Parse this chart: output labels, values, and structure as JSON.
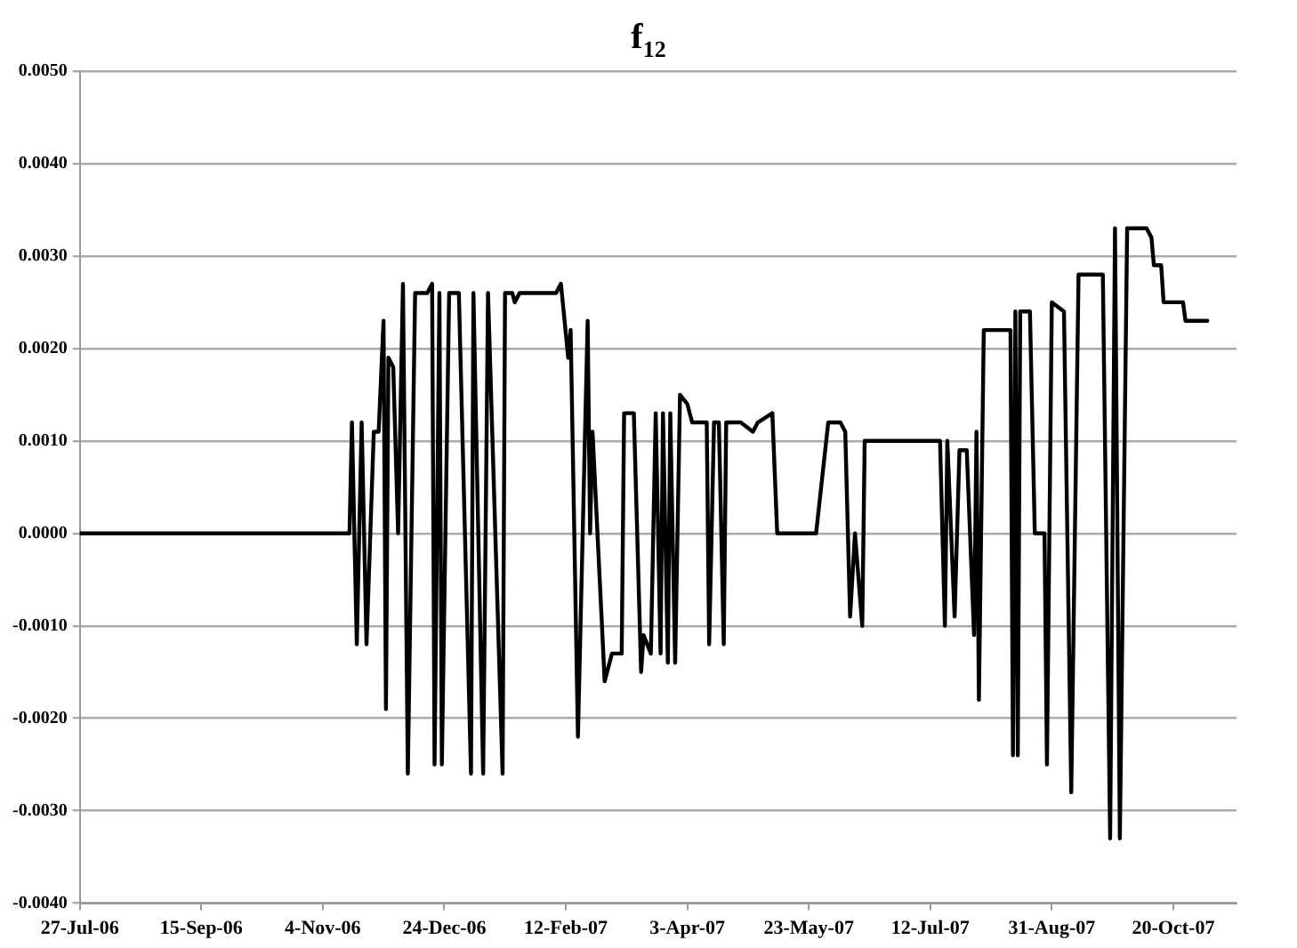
{
  "chart_data": {
    "type": "line",
    "title": "f$_{12}$",
    "x": [
      "2006-07-27",
      "2006-11-15",
      "2006-11-16",
      "2006-11-18",
      "2006-11-20",
      "2006-11-22",
      "2006-11-25",
      "2006-11-27",
      "2006-11-29",
      "2006-11-30",
      "2006-12-01",
      "2006-12-03",
      "2006-12-05",
      "2006-12-07",
      "2006-12-09",
      "2006-12-12",
      "2006-12-17",
      "2006-12-19",
      "2006-12-20",
      "2006-12-22",
      "2006-12-23",
      "2006-12-26",
      "2006-12-30",
      "2007-01-04",
      "2007-01-05",
      "2007-01-09",
      "2007-01-11",
      "2007-01-17",
      "2007-01-18",
      "2007-01-21",
      "2007-01-22",
      "2007-01-24",
      "2007-02-08",
      "2007-02-10",
      "2007-02-13",
      "2007-02-14",
      "2007-02-17",
      "2007-02-21",
      "2007-02-22",
      "2007-02-23",
      "2007-02-28",
      "2007-03-03",
      "2007-03-07",
      "2007-03-08",
      "2007-03-12",
      "2007-03-15",
      "2007-03-16",
      "2007-03-19",
      "2007-03-21",
      "2007-03-23",
      "2007-03-24",
      "2007-03-26",
      "2007-03-27",
      "2007-03-29",
      "2007-03-31",
      "2007-04-03",
      "2007-04-05",
      "2007-04-11",
      "2007-04-12",
      "2007-04-14",
      "2007-04-16",
      "2007-04-18",
      "2007-04-19",
      "2007-04-25",
      "2007-04-30",
      "2007-05-02",
      "2007-05-08",
      "2007-05-10",
      "2007-05-26",
      "2007-05-31",
      "2007-06-05",
      "2007-06-07",
      "2007-06-09",
      "2007-06-11",
      "2007-06-14",
      "2007-06-15",
      "2007-06-24",
      "2007-06-27",
      "2007-07-16",
      "2007-07-18",
      "2007-07-19",
      "2007-07-22",
      "2007-07-24",
      "2007-07-27",
      "2007-07-30",
      "2007-07-31",
      "2007-08-01",
      "2007-08-03",
      "2007-08-09",
      "2007-08-14",
      "2007-08-15",
      "2007-08-16",
      "2007-08-17",
      "2007-08-18",
      "2007-08-22",
      "2007-08-24",
      "2007-08-28",
      "2007-08-29",
      "2007-08-31",
      "2007-09-05",
      "2007-09-08",
      "2007-09-11",
      "2007-09-21",
      "2007-09-24",
      "2007-09-26",
      "2007-09-28",
      "2007-10-01",
      "2007-10-09",
      "2007-10-11",
      "2007-10-12",
      "2007-10-15",
      "2007-10-16",
      "2007-10-24",
      "2007-10-25",
      "2007-11-03"
    ],
    "series": [
      {
        "color": "#000000",
        "values": [
          0,
          0,
          0.0012,
          -0.0012,
          0.0012,
          -0.0012,
          0.0011,
          0.0011,
          0.0023,
          -0.0019,
          0.0019,
          0.0018,
          0,
          0.0027,
          -0.0026,
          0.0026,
          0.0026,
          0.0027,
          -0.0025,
          0.0026,
          -0.0025,
          0.0026,
          0.0026,
          -0.0026,
          0.0026,
          -0.0026,
          0.0026,
          -0.0026,
          0.0026,
          0.0026,
          0.0025,
          0.0026,
          0.0026,
          0.0027,
          0.0019,
          0.0022,
          -0.0022,
          0.0023,
          0,
          0.0011,
          -0.0016,
          -0.0013,
          -0.0013,
          0.0013,
          0.0013,
          -0.0015,
          -0.0011,
          -0.0013,
          0.0013,
          -0.0013,
          0.0013,
          -0.0014,
          0.0013,
          -0.0014,
          0.0015,
          0.0014,
          0.0012,
          0.0012,
          -0.0012,
          0.0012,
          0.0012,
          -0.0012,
          0.0012,
          0.0012,
          0.0011,
          0.0012,
          0.0013,
          0,
          0,
          0.0012,
          0.0012,
          0.0011,
          -0.0009,
          0,
          -0.001,
          0.001,
          0.001,
          0.001,
          0.001,
          -0.001,
          0.001,
          -0.0009,
          0.0009,
          0.0009,
          -0.0011,
          0.0011,
          -0.0018,
          0.0022,
          0.0022,
          0.0022,
          -0.0024,
          0.0024,
          -0.0024,
          0.0024,
          0.0024,
          0,
          0,
          -0.0025,
          0.0025,
          0.0024,
          -0.0028,
          0.0028,
          0.0028,
          -0.0033,
          0.0033,
          -0.0033,
          0.0033,
          0.0033,
          0.0032,
          0.0029,
          0.0029,
          0.0025,
          0.0025,
          0.0023,
          0.0023
        ]
      }
    ],
    "xlim": [
      "2006-07-27",
      "2007-11-15"
    ],
    "xticks": [
      {
        "value": "2006-07-27",
        "label": "27-Jul-06"
      },
      {
        "value": "2006-09-15",
        "label": "15-Sep-06"
      },
      {
        "value": "2006-11-04",
        "label": "4-Nov-06"
      },
      {
        "value": "2006-12-24",
        "label": "24-Dec-06"
      },
      {
        "value": "2007-02-12",
        "label": "12-Feb-07"
      },
      {
        "value": "2007-04-03",
        "label": "3-Apr-07"
      },
      {
        "value": "2007-05-23",
        "label": "23-May-07"
      },
      {
        "value": "2007-07-12",
        "label": "12-Jul-07"
      },
      {
        "value": "2007-08-31",
        "label": "31-Aug-07"
      },
      {
        "value": "2007-10-20",
        "label": "20-Oct-07"
      }
    ],
    "ylim": [
      -0.004,
      0.005
    ],
    "yticks": [
      {
        "value": -0.004,
        "label": "-0.0040"
      },
      {
        "value": -0.003,
        "label": "-0.0030"
      },
      {
        "value": -0.002,
        "label": "-0.0020"
      },
      {
        "value": -0.001,
        "label": "-0.0010"
      },
      {
        "value": 0,
        "label": "0.0000"
      },
      {
        "value": 0.001,
        "label": "0.0010"
      },
      {
        "value": 0.002,
        "label": "0.0020"
      },
      {
        "value": 0.003,
        "label": "0.0030"
      },
      {
        "value": 0.004,
        "label": "0.0040"
      },
      {
        "value": 0.005,
        "label": "0.0050"
      }
    ],
    "grid": "y",
    "marker": "none",
    "line_style": "solid"
  }
}
